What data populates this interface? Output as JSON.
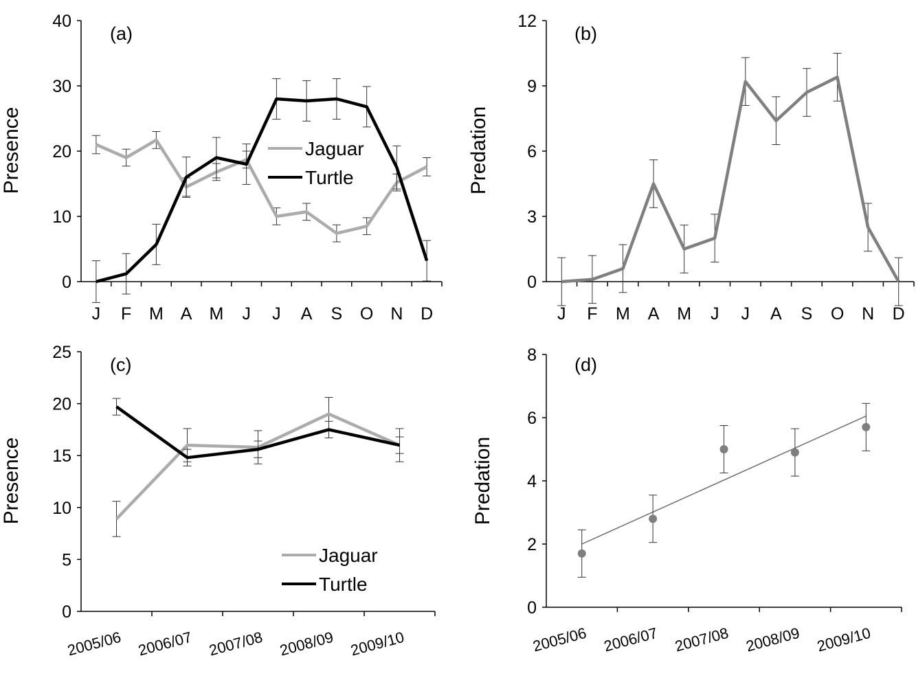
{
  "colors": {
    "jaguar": "#ababab",
    "turtle": "#000000",
    "predation": "#7f7f7f",
    "fit": "#6e6e6e",
    "axis": "#000000"
  },
  "chart_data": [
    {
      "type": "line",
      "panel_label": "(a)",
      "ylabel": "Presence",
      "ylim": [
        0,
        40
      ],
      "yticks": [
        "0",
        "10",
        "20",
        "30",
        "40"
      ],
      "categories": [
        "J",
        "F",
        "M",
        "A",
        "M",
        "J",
        "J",
        "A",
        "S",
        "O",
        "N",
        "D"
      ],
      "legend": [
        "Jaguar",
        "Turtle"
      ],
      "series": [
        {
          "name": "Jaguar",
          "values": [
            21,
            19,
            21.7,
            14.5,
            16.8,
            18.7,
            10,
            10.7,
            7.4,
            8.5,
            15.2,
            17.6
          ],
          "errors": [
            1.4,
            1.3,
            1.3,
            1.4,
            1.3,
            1.3,
            1.3,
            1.3,
            1.3,
            1.3,
            1.3,
            1.4
          ]
        },
        {
          "name": "Turtle",
          "values": [
            0,
            1.2,
            5.7,
            16,
            19,
            18,
            28,
            27.7,
            28,
            26.8,
            17.5,
            3.2
          ],
          "errors": [
            3.2,
            3.1,
            3.1,
            3.1,
            3.1,
            3.1,
            3.1,
            3.1,
            3.1,
            3.1,
            3.3,
            3.1
          ]
        }
      ]
    },
    {
      "type": "line",
      "panel_label": "(b)",
      "ylabel": "Predation",
      "ylim": [
        0,
        12
      ],
      "yticks": [
        "0",
        "3",
        "6",
        "9",
        "12"
      ],
      "categories": [
        "J",
        "F",
        "M",
        "A",
        "M",
        "J",
        "J",
        "A",
        "S",
        "O",
        "N",
        "D"
      ],
      "series": [
        {
          "name": "Predation",
          "values": [
            0,
            0.1,
            0.6,
            4.5,
            1.5,
            2,
            9.2,
            7.4,
            8.7,
            9.4,
            2.5,
            0
          ],
          "errors": [
            1.1,
            1.1,
            1.1,
            1.1,
            1.1,
            1.1,
            1.1,
            1.1,
            1.1,
            1.1,
            1.1,
            1.1
          ]
        }
      ]
    },
    {
      "type": "line",
      "panel_label": "(c)",
      "ylabel": "Presence",
      "ylim": [
        0,
        25
      ],
      "yticks": [
        "0",
        "5",
        "10",
        "15",
        "20",
        "25"
      ],
      "categories": [
        "2005/06",
        "2006/07",
        "2007/08",
        "2008/09",
        "2009/10"
      ],
      "legend": [
        "Jaguar",
        "Turtle"
      ],
      "series": [
        {
          "name": "Jaguar",
          "values": [
            8.9,
            16,
            15.8,
            19,
            16
          ],
          "errors": [
            1.7,
            1.6,
            1.6,
            1.6,
            1.6
          ]
        },
        {
          "name": "Turtle",
          "values": [
            19.7,
            14.8,
            15.6,
            17.5,
            16
          ],
          "errors": [
            0.8,
            0.8,
            0.8,
            0.8,
            0.8
          ]
        }
      ]
    },
    {
      "type": "scatter",
      "panel_label": "(d)",
      "ylabel": "Predation",
      "ylim": [
        0,
        8
      ],
      "yticks": [
        "0",
        "2",
        "4",
        "6",
        "8"
      ],
      "categories": [
        "2005/06",
        "2006/07",
        "2007/08",
        "2008/09",
        "2009/10"
      ],
      "series": [
        {
          "name": "Predation",
          "values": [
            1.7,
            2.8,
            5,
            4.9,
            5.7
          ],
          "errors": [
            0.75,
            0.75,
            0.75,
            0.75,
            0.75
          ]
        }
      ],
      "fit": {
        "start": 2.0,
        "end": 6.05
      }
    }
  ]
}
